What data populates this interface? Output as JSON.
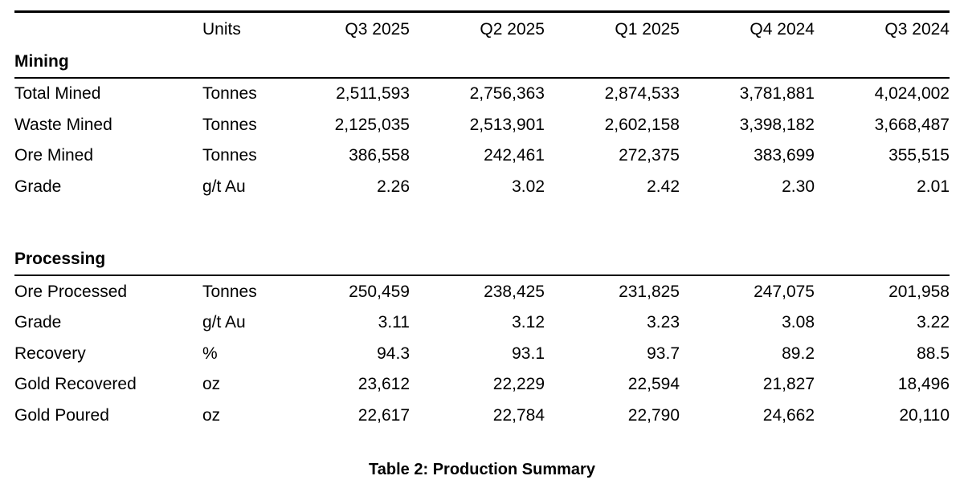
{
  "colors": {
    "text": "#000000",
    "background": "#ffffff",
    "rule": "#000000"
  },
  "table": {
    "caption": "Table 2: Production Summary",
    "columns": [
      "",
      "Units",
      "Q3 2025",
      "Q2 2025",
      "Q1 2025",
      "Q4 2024",
      "Q3 2024"
    ],
    "sections": [
      {
        "label": "Mining",
        "rows": [
          {
            "metric": "Total Mined",
            "units": "Tonnes",
            "values": [
              "2,511,593",
              "2,756,363",
              "2,874,533",
              "3,781,881",
              "4,024,002"
            ]
          },
          {
            "metric": "Waste Mined",
            "units": "Tonnes",
            "values": [
              "2,125,035",
              "2,513,901",
              "2,602,158",
              "3,398,182",
              "3,668,487"
            ]
          },
          {
            "metric": "Ore Mined",
            "units": "Tonnes",
            "values": [
              "386,558",
              "242,461",
              "272,375",
              "383,699",
              "355,515"
            ]
          },
          {
            "metric": "Grade",
            "units": "g/t Au",
            "values": [
              "2.26",
              "3.02",
              "2.42",
              "2.30",
              "2.01"
            ]
          }
        ]
      },
      {
        "label": "Processing",
        "rows": [
          {
            "metric": "Ore Processed",
            "units": "Tonnes",
            "values": [
              "250,459",
              "238,425",
              "231,825",
              "247,075",
              "201,958"
            ]
          },
          {
            "metric": "Grade",
            "units": "g/t Au",
            "values": [
              "3.11",
              "3.12",
              "3.23",
              "3.08",
              "3.22"
            ]
          },
          {
            "metric": "Recovery",
            "units": "%",
            "values": [
              "94.3",
              "93.1",
              "93.7",
              "89.2",
              "88.5"
            ]
          },
          {
            "metric": "Gold Recovered",
            "units": "oz",
            "values": [
              "23,612",
              "22,229",
              "22,594",
              "21,827",
              "18,496"
            ]
          },
          {
            "metric": "Gold Poured",
            "units": "oz",
            "values": [
              "22,617",
              "22,784",
              "22,790",
              "24,662",
              "20,110"
            ]
          }
        ]
      }
    ]
  }
}
